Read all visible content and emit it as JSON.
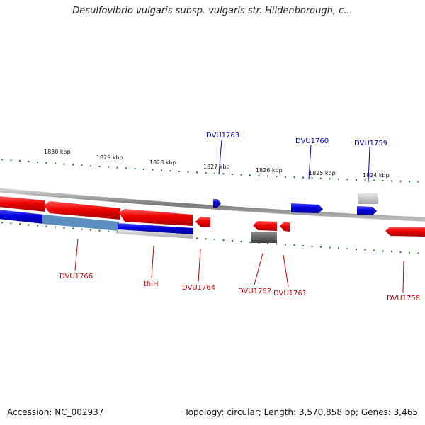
{
  "title": "Desulfovibrio vulgaris subsp. vulgaris str. Hildenborough, c...",
  "footer": {
    "accession": "Accession: NC_002937",
    "summary": "Topology: circular; Length: 3,570,858 bp; Genes: 3,465"
  },
  "colors": {
    "backbone": "#8a8a8a",
    "forward_gene": "#0000dd",
    "reverse_gene": "#ee0000",
    "highlight": "#5b8fc0",
    "tick": "#1f7a1f",
    "forward_label": "#0000cc",
    "reverse_label": "#cc0000"
  },
  "scale_labels": [
    "1830 kbp",
    "1829 kbp",
    "1828 kbp",
    "1827 kbp",
    "1826 kbp",
    "1825 kbp",
    "1824 kbp"
  ],
  "forward_genes": [
    {
      "label": "DVU1763"
    },
    {
      "label": "DVU1760"
    },
    {
      "label": "DVU1759"
    }
  ],
  "reverse_genes": [
    {
      "label": "DVU1766"
    },
    {
      "label": "thiH"
    },
    {
      "label": "DVU1764"
    },
    {
      "label": "DVU1762"
    },
    {
      "label": "DVU1761"
    },
    {
      "label": "DVU1758"
    }
  ]
}
